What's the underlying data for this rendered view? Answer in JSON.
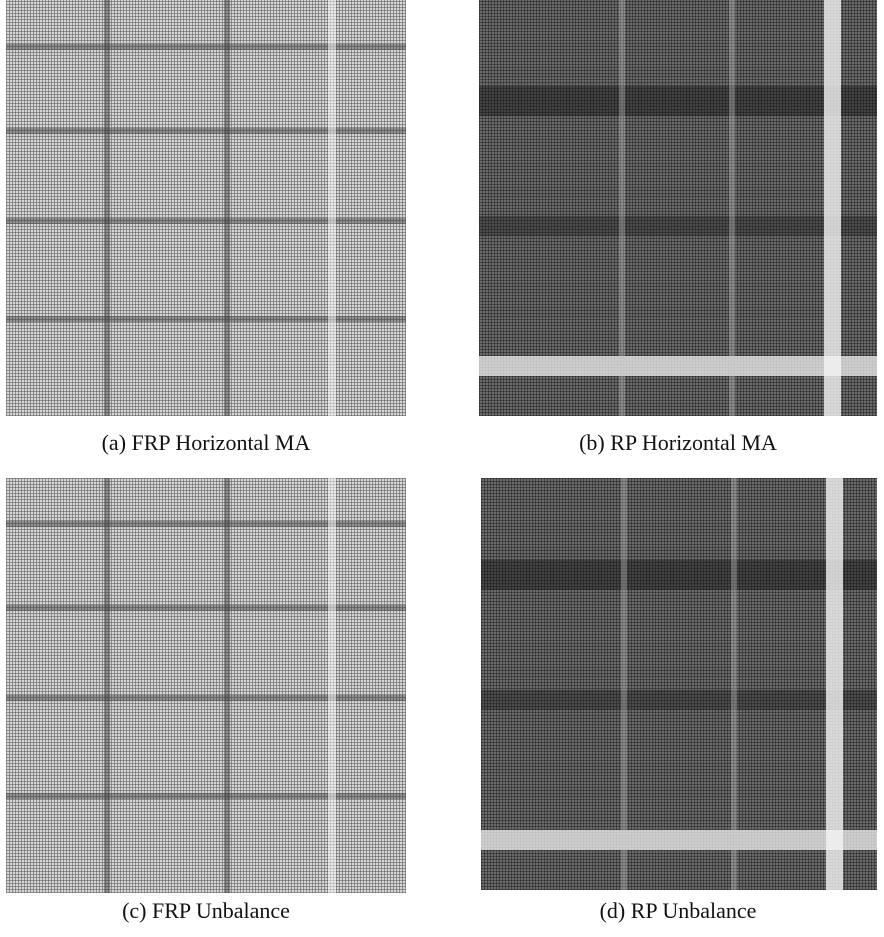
{
  "figures": [
    {
      "caption": "(a) FRP Horizontal MA"
    },
    {
      "caption": "(b) RP Horizontal MA"
    },
    {
      "caption": "(c) FRP Unbalance"
    },
    {
      "caption": "(d) RP Unbalance"
    }
  ]
}
